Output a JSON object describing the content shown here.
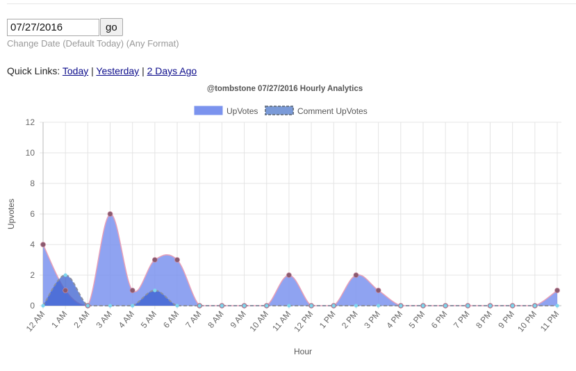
{
  "date_form": {
    "value": "07/27/2016",
    "go_label": "go",
    "hint": "Change Date (Default Today) (Any Format)"
  },
  "quick_links": {
    "label": "Quick Links:",
    "separator": "|",
    "links": [
      "Today",
      "Yesterday",
      "2 Days Ago"
    ]
  },
  "colors": {
    "upvotes_fill": "#7b93ee",
    "upvotes_line": "#e8a0b8",
    "upvotes_point": "#8a5a6e",
    "comment_fill": "#3a5fcf",
    "comment_line": "#8a8fa0",
    "comment_point": "#7fd6ee"
  },
  "chart_data": {
    "type": "area",
    "title": "@tombstone 07/27/2016 Hourly Analytics",
    "xlabel": "Hour",
    "ylabel": "Upvotes",
    "ylim": [
      0,
      12
    ],
    "yticks": [
      0,
      2,
      4,
      6,
      8,
      10,
      12
    ],
    "grid": true,
    "legend_position": "top",
    "categories": [
      "12 AM",
      "1 AM",
      "2 AM",
      "3 AM",
      "4 AM",
      "5 AM",
      "6 AM",
      "7 AM",
      "8 AM",
      "9 AM",
      "10 AM",
      "11 AM",
      "12 PM",
      "1 PM",
      "2 PM",
      "3 PM",
      "4 PM",
      "5 PM",
      "6 PM",
      "7 PM",
      "8 PM",
      "9 PM",
      "10 PM",
      "11 PM"
    ],
    "series": [
      {
        "name": "UpVotes",
        "values": [
          4,
          1,
          0,
          6,
          1,
          3,
          3,
          0,
          0,
          0,
          0,
          2,
          0,
          0,
          2,
          1,
          0,
          0,
          0,
          0,
          0,
          0,
          0,
          1
        ]
      },
      {
        "name": "Comment UpVotes",
        "values": [
          0,
          2,
          0,
          0,
          0,
          1,
          0,
          0,
          0,
          0,
          0,
          0,
          0,
          0,
          0,
          0,
          0,
          0,
          0,
          0,
          0,
          0,
          0,
          0
        ]
      }
    ]
  }
}
